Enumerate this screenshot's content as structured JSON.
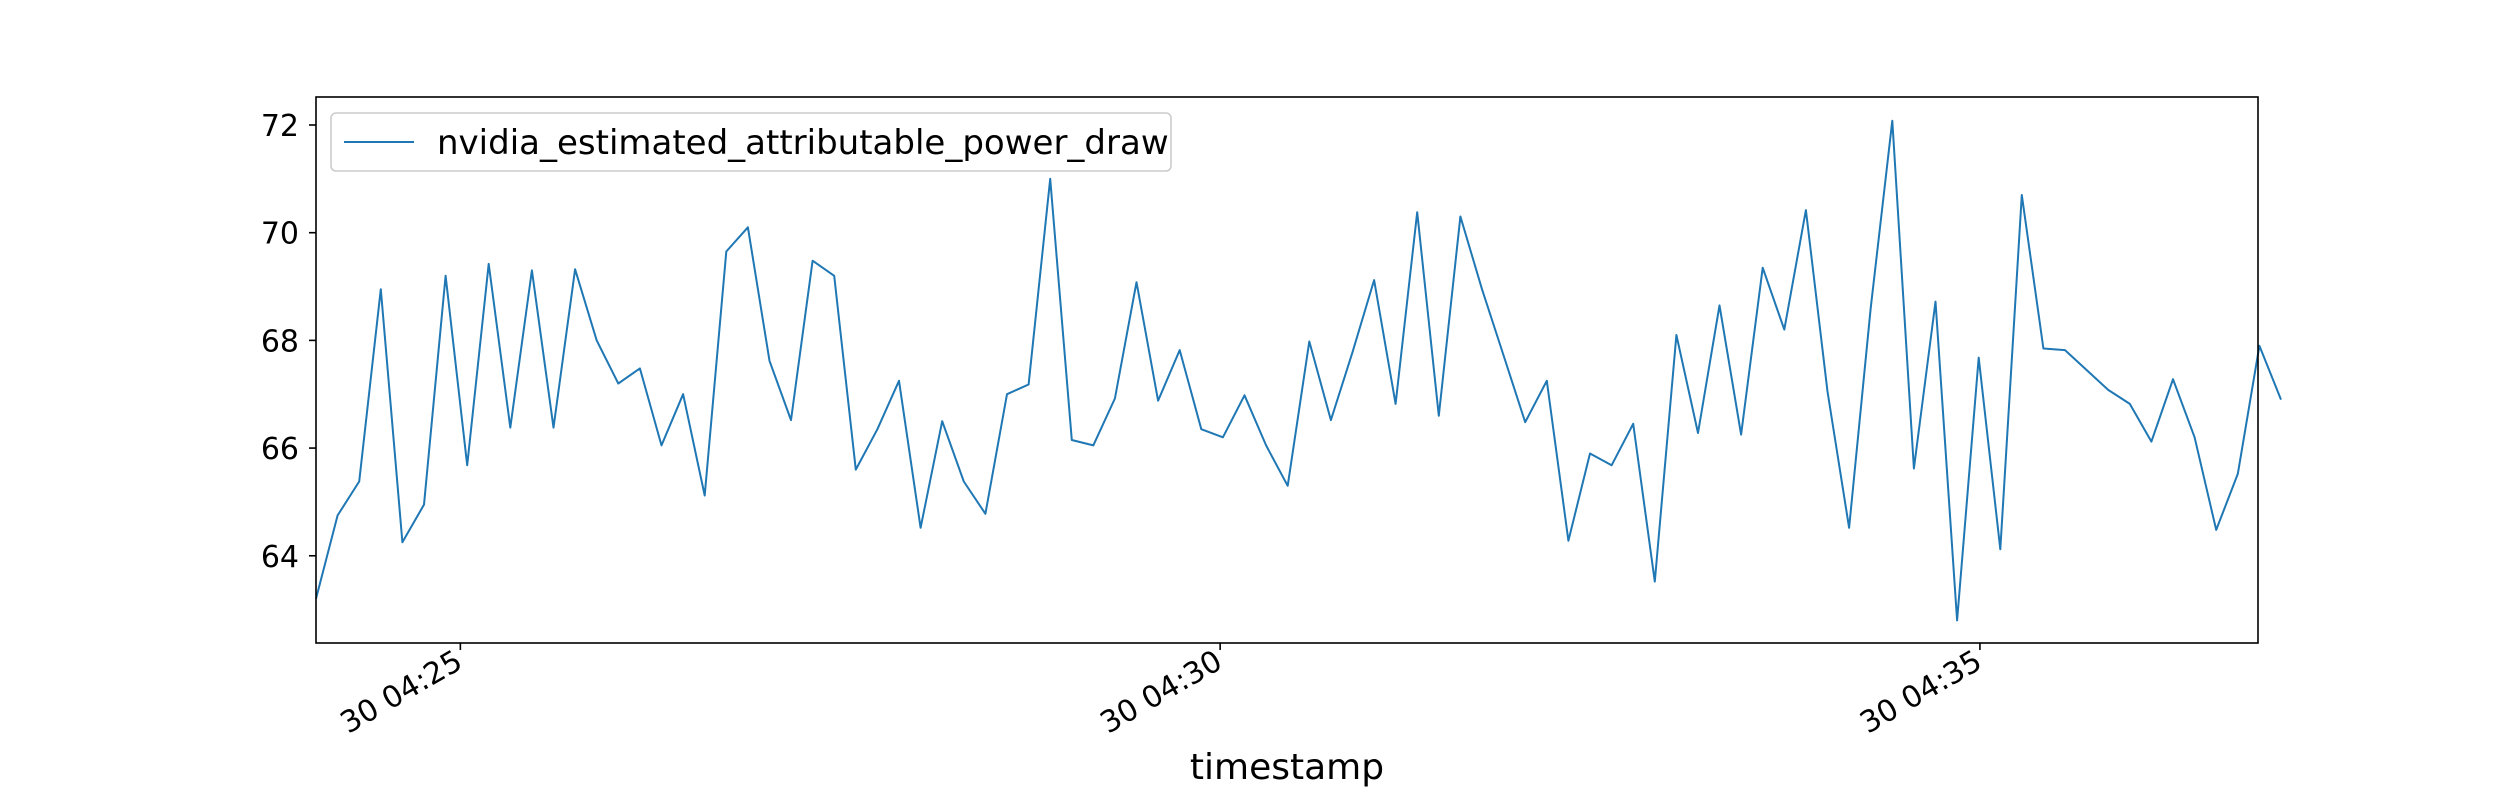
{
  "chart_data": {
    "type": "line",
    "title": "",
    "xlabel": "timestamp",
    "ylabel": "",
    "x_unit": "minutes past 04:00 (timestamps in the hour labelled '30 04:xx')",
    "xlim": [
      24.05,
      36.83
    ],
    "ylim": [
      62.38,
      72.52
    ],
    "x_ticks": [
      {
        "value": 25,
        "label": "30 04:25"
      },
      {
        "value": 30,
        "label": "30 04:30"
      },
      {
        "value": 35,
        "label": "30 04:35"
      }
    ],
    "y_ticks": [
      {
        "value": 64,
        "label": "64"
      },
      {
        "value": 66,
        "label": "66"
      },
      {
        "value": 68,
        "label": "68"
      },
      {
        "value": 70,
        "label": "70"
      },
      {
        "value": 72,
        "label": "72"
      }
    ],
    "grid": false,
    "legend": {
      "position": "top-left"
    },
    "colors": {
      "series": "#1f77b4",
      "axes": "#000000",
      "legend_border": "#cccccc"
    },
    "series": [
      {
        "name": "nvidia_estimated_attributable_power_draw",
        "x_start": 24.05,
        "x_step": 0.1421,
        "values": [
          63.2,
          64.75,
          65.38,
          68.95,
          64.25,
          64.95,
          69.2,
          65.68,
          69.42,
          66.38,
          69.3,
          66.38,
          69.32,
          68.0,
          67.2,
          67.48,
          66.05,
          67.0,
          65.12,
          69.65,
          70.1,
          67.62,
          66.52,
          69.48,
          69.2,
          65.6,
          66.35,
          67.25,
          64.52,
          66.5,
          65.38,
          64.78,
          67.0,
          67.18,
          71.0,
          66.15,
          66.05,
          66.92,
          69.08,
          66.88,
          67.82,
          66.35,
          66.2,
          66.98,
          66.05,
          65.3,
          67.98,
          66.52,
          67.78,
          69.12,
          66.82,
          70.38,
          66.6,
          70.3,
          68.95,
          67.72,
          66.48,
          67.25,
          64.28,
          65.9,
          65.68,
          66.45,
          63.52,
          68.1,
          66.28,
          68.65,
          66.25,
          69.35,
          68.2,
          70.42,
          67.05,
          64.52,
          68.6,
          72.08,
          65.62,
          68.72,
          62.8,
          67.68,
          64.12,
          70.7,
          67.85,
          67.82,
          67.45,
          67.08,
          66.82,
          66.12,
          67.28,
          66.2,
          64.48,
          65.52,
          67.9,
          66.9
        ]
      }
    ]
  }
}
